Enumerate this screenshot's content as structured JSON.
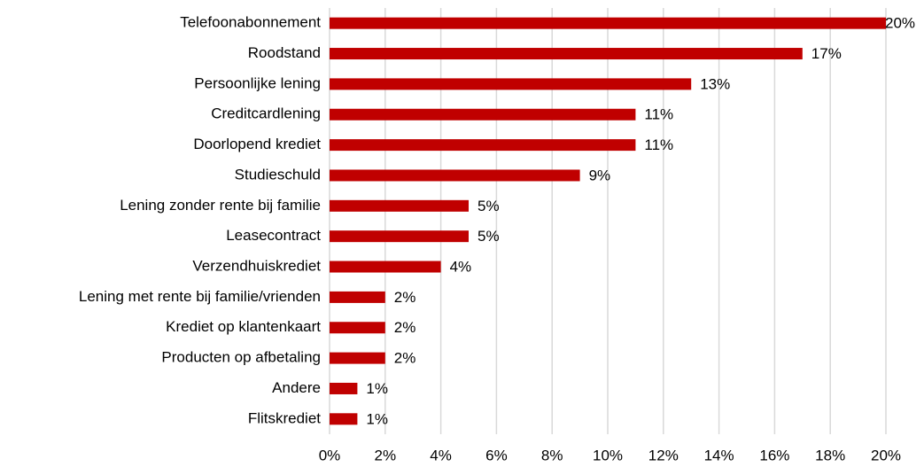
{
  "chart_data": {
    "type": "bar",
    "orientation": "horizontal",
    "categories": [
      "Telefoonabonnement",
      "Roodstand",
      "Persoonlijke lening",
      "Creditcardlening",
      "Doorlopend krediet",
      "Studieschuld",
      "Lening zonder rente bij familie",
      "Leasecontract",
      "Verzendhuiskrediet",
      "Lening met rente bij familie/vrienden",
      "Krediet op klantenkaart",
      "Producten op afbetaling",
      "Andere",
      "Flitskrediet"
    ],
    "values": [
      20,
      17,
      13,
      11,
      11,
      9,
      5,
      5,
      4,
      2,
      2,
      2,
      1,
      1
    ],
    "value_labels": [
      "20%",
      "17%",
      "13%",
      "11%",
      "11%",
      "9%",
      "5%",
      "5%",
      "4%",
      "2%",
      "2%",
      "2%",
      "1%",
      "1%"
    ],
    "color": "#c00000",
    "xlim": [
      0,
      20
    ],
    "xticks": [
      {
        "value": 0,
        "label": "0%"
      },
      {
        "value": 2,
        "label": "2%"
      },
      {
        "value": 4,
        "label": "4%"
      },
      {
        "value": 6,
        "label": "6%"
      },
      {
        "value": 8,
        "label": "8%"
      },
      {
        "value": 10,
        "label": "10%"
      },
      {
        "value": 12,
        "label": "12%"
      },
      {
        "value": 14,
        "label": "14%"
      },
      {
        "value": 16,
        "label": "16%"
      },
      {
        "value": 18,
        "label": "18%"
      },
      {
        "value": 20,
        "label": "20%"
      }
    ],
    "grid": true
  }
}
